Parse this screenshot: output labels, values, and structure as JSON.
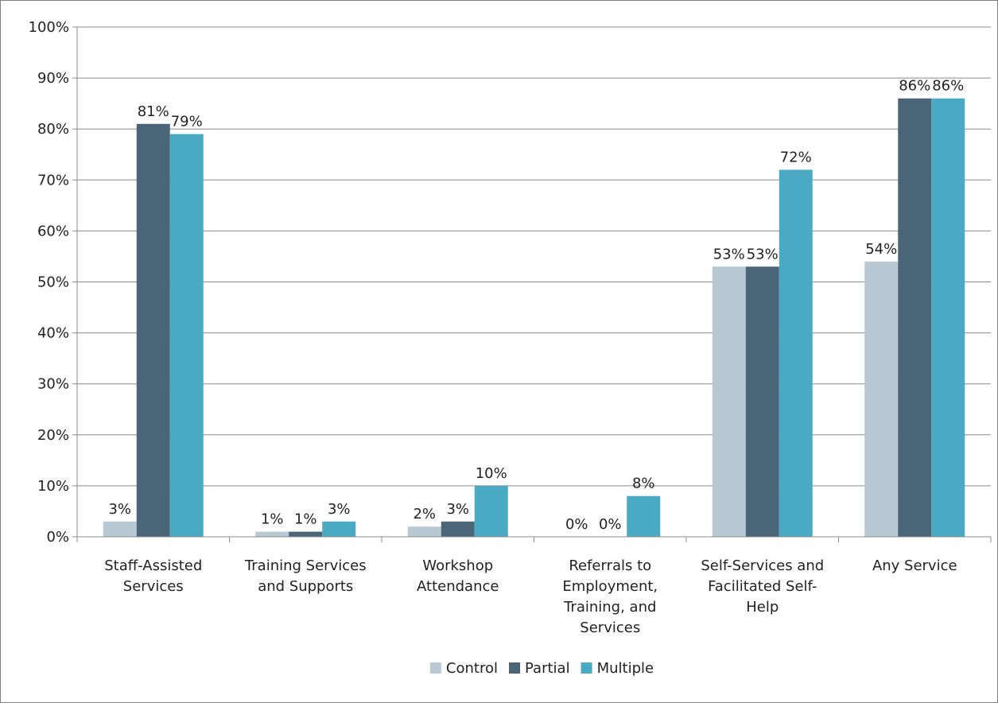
{
  "chart_data": {
    "type": "bar",
    "title": "",
    "xlabel": "",
    "ylabel": "",
    "ylim": [
      0,
      100
    ],
    "y_ticks": [
      "0%",
      "10%",
      "20%",
      "30%",
      "40%",
      "50%",
      "60%",
      "70%",
      "80%",
      "90%",
      "100%"
    ],
    "grid": true,
    "legend_position": "bottom",
    "categories": [
      [
        "Staff-Assisted",
        "Services"
      ],
      [
        "Training Services",
        "and Supports"
      ],
      [
        "Workshop",
        "Attendance"
      ],
      [
        "Referrals to",
        "Employment,",
        "Training, and",
        "Services"
      ],
      [
        "Self-Services and",
        "Facilitated Self-",
        "Help"
      ],
      [
        "Any Service"
      ]
    ],
    "series": [
      {
        "name": "Control",
        "color": "#b8c9d3",
        "values": [
          3,
          1,
          2,
          0,
          53,
          54
        ],
        "labels": [
          "3%",
          "1%",
          "2%",
          "0%",
          "53%",
          "54%"
        ]
      },
      {
        "name": "Partial",
        "color": "#4a6577",
        "values": [
          81,
          1,
          3,
          0,
          53,
          86
        ],
        "labels": [
          "81%",
          "1%",
          "3%",
          "0%",
          "53%",
          "86%"
        ]
      },
      {
        "name": "Multiple",
        "color": "#4aa9c3",
        "values": [
          79,
          3,
          10,
          8,
          72,
          86
        ],
        "labels": [
          "79%",
          "3%",
          "10%",
          "8%",
          "72%",
          "86%"
        ]
      }
    ]
  }
}
